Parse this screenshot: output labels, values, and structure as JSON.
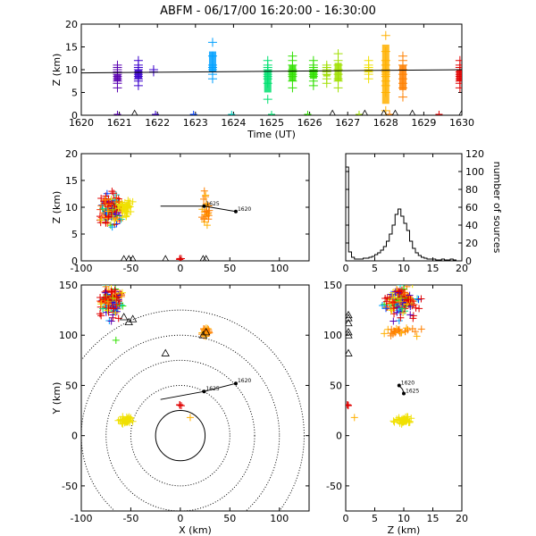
{
  "title": "ABFM - 06/17/00 16:20:00 - 16:30:00",
  "palette": [
    "#5a00b0",
    "#3a00cc",
    "#0040ff",
    "#00a0ff",
    "#00d0c0",
    "#00e070",
    "#30e000",
    "#a0e000",
    "#f0e000",
    "#ffb000",
    "#ff8000",
    "#ff3000",
    "#e00000"
  ],
  "chart_data": [
    {
      "id": "time_height",
      "type": "scatter",
      "xlabel": "Time (UT)",
      "ylabel": "Z (km)",
      "xlim": [
        1620,
        1630
      ],
      "ylim": [
        0,
        20
      ],
      "xticks": [
        1620,
        1621,
        1622,
        1623,
        1624,
        1625,
        1626,
        1627,
        1628,
        1629,
        1630
      ],
      "yticks": [
        0,
        5,
        10,
        15,
        20
      ],
      "reference_line": {
        "x": [
          1620,
          1630
        ],
        "y": [
          9.3,
          10.0
        ]
      },
      "clusters": [
        {
          "x": 1620.95,
          "y": [
            6.0,
            7.0,
            7.5,
            8.0,
            8.5,
            9.0,
            9.5,
            10.0,
            10.5,
            11.0
          ],
          "color": "#5a00b0"
        },
        {
          "x": 1621.5,
          "y": [
            6.5,
            7.5,
            8.0,
            8.5,
            9.0,
            9.5,
            10.0,
            10.5,
            11.0,
            12.0
          ],
          "color": "#3a00cc"
        },
        {
          "x": 1621.9,
          "y": [
            9.5,
            10.0
          ],
          "color": "#3a00cc"
        },
        {
          "x": 1623.45,
          "y": [
            8.0,
            9.0,
            9.5,
            10.0,
            10.5,
            11.0,
            13.0,
            16.0
          ],
          "color": "#00a0ff"
        },
        {
          "x": 1624.9,
          "y": [
            3.5,
            7.0,
            8.0,
            8.5,
            9.0,
            9.5,
            10.0,
            10.5,
            11.0,
            12.0
          ],
          "color": "#00e070"
        },
        {
          "x": 1625.55,
          "y": [
            6.0,
            7.5,
            8.5,
            9.0,
            9.5,
            10.0,
            11.0,
            12.0,
            13.0
          ],
          "color": "#30e000"
        },
        {
          "x": 1626.1,
          "y": [
            6.5,
            7.5,
            8.5,
            9.0,
            9.5,
            10.0,
            10.5,
            11.0,
            12.0
          ],
          "color": "#30e000"
        },
        {
          "x": 1626.45,
          "y": [
            7.0,
            8.0,
            9.0,
            9.5,
            10.0,
            10.5,
            11.0
          ],
          "color": "#a0e000"
        },
        {
          "x": 1626.75,
          "y": [
            6.0,
            7.5,
            8.0,
            9.0,
            10.0,
            11.0,
            12.0,
            13.5
          ],
          "color": "#a0e000"
        },
        {
          "x": 1627.55,
          "y": [
            8.0,
            9.0,
            9.5,
            10.0,
            10.5,
            11.0,
            12.0
          ],
          "color": "#f0e000"
        },
        {
          "x": 1628.0,
          "y": [
            1.0,
            5.0,
            6.5,
            7.5,
            8.5,
            9.0,
            9.5,
            10.0,
            11.0,
            12.0,
            14.0,
            17.5
          ],
          "color": "#ffb000"
        },
        {
          "x": 1628.45,
          "y": [
            4.0,
            6.0,
            7.0,
            8.0,
            9.0,
            10.0,
            11.0,
            12.0,
            13.0
          ],
          "color": "#ff8000"
        },
        {
          "x": 1629.95,
          "y": [
            6.0,
            7.0,
            7.5,
            8.0,
            8.5,
            9.0,
            9.5,
            10.0,
            10.5,
            11.0,
            12.0
          ],
          "color": "#e00000"
        }
      ],
      "ground_points": [
        {
          "x": 1620.95,
          "color": "#5a00b0"
        },
        {
          "x": 1621.95,
          "color": "#3a00cc"
        },
        {
          "x": 1622.95,
          "color": "#0040ff"
        },
        {
          "x": 1623.95,
          "color": "#00d0c0"
        },
        {
          "x": 1625.0,
          "color": "#00e070"
        },
        {
          "x": 1625.95,
          "color": "#30e000"
        },
        {
          "x": 1627.3,
          "color": "#a0e000"
        },
        {
          "x": 1628.1,
          "color": "#ff8000"
        },
        {
          "x": 1629.4,
          "color": "#e00000"
        }
      ],
      "triangles": [
        1621.4,
        1626.6,
        1627.45,
        1627.95,
        1628.25,
        1628.7,
        1630.0
      ]
    },
    {
      "id": "xz_view",
      "type": "scatter",
      "xlabel": "",
      "ylabel": "Z (km)",
      "xlim": [
        -100,
        130
      ],
      "ylim": [
        0,
        20
      ],
      "xticks": [
        -100,
        -50,
        0,
        50,
        100
      ],
      "yticks": [
        0,
        5,
        10,
        15,
        20
      ],
      "track": {
        "x": [
          -20,
          24,
          56
        ],
        "y": [
          10.2,
          10.2,
          9.2
        ],
        "labels": [
          {
            "x": 24,
            "y": 10.2,
            "text": "1625"
          },
          {
            "x": 56,
            "y": 9.2,
            "text": "1620"
          }
        ]
      },
      "triangles": [
        -57,
        -52,
        -48,
        -15,
        23,
        26
      ]
    },
    {
      "id": "histogram",
      "type": "area",
      "xlabel": "",
      "ylabel": "number of sources",
      "xlim": [
        0,
        20
      ],
      "ylim": [
        0,
        120
      ],
      "xticks": [
        0,
        5,
        10,
        15,
        20
      ],
      "yticks": [
        0,
        20,
        40,
        60,
        80,
        100,
        120
      ],
      "x": [
        0,
        0.5,
        1,
        1.5,
        2,
        2.5,
        3,
        3.5,
        4,
        4.5,
        5,
        5.5,
        6,
        6.5,
        7,
        7.5,
        8,
        8.5,
        9,
        9.5,
        10,
        10.5,
        11,
        11.5,
        12,
        12.5,
        13,
        13.5,
        14,
        14.5,
        15,
        15.5,
        16,
        16.5,
        17,
        17.5,
        18,
        18.5,
        19,
        19.5
      ],
      "values": [
        105,
        10,
        4,
        2,
        2,
        2,
        3,
        3,
        4,
        5,
        7,
        9,
        12,
        16,
        22,
        30,
        40,
        52,
        58,
        50,
        42,
        34,
        22,
        14,
        9,
        6,
        4,
        3,
        2,
        2,
        2,
        1,
        1,
        2,
        1,
        1,
        2,
        1,
        0,
        0
      ]
    },
    {
      "id": "plan_view",
      "type": "scatter",
      "xlabel": "X (km)",
      "ylabel": "Y (km)",
      "xlim": [
        -100,
        130
      ],
      "ylim": [
        -75,
        150
      ],
      "xticks": [
        -100,
        -50,
        0,
        50,
        100
      ],
      "yticks": [
        -50,
        0,
        50,
        100,
        150
      ],
      "range_rings": [
        25,
        50,
        75,
        100,
        125
      ],
      "ring_center": [
        0,
        0
      ],
      "track": {
        "x": [
          -20,
          24,
          56
        ],
        "y": [
          36,
          44,
          52
        ],
        "labels": [
          {
            "x": 24,
            "y": 44,
            "text": "1625"
          },
          {
            "x": 56,
            "y": 52,
            "text": "1620"
          }
        ]
      },
      "triangles": [
        [
          -57,
          118
        ],
        [
          -52,
          113
        ],
        [
          -48,
          116
        ],
        [
          -15,
          82
        ],
        [
          23,
          100
        ],
        [
          26,
          103
        ]
      ]
    },
    {
      "id": "yz_view",
      "type": "scatter",
      "xlabel": "Z (km)",
      "ylabel": "",
      "xlim": [
        0,
        20
      ],
      "ylim": [
        -75,
        150
      ],
      "xticks": [
        0,
        5,
        10,
        15,
        20
      ],
      "yticks": [
        -50,
        0,
        50,
        100,
        150
      ],
      "track": {
        "x": [
          9.2,
          9.8,
          10.0
        ],
        "y": [
          50,
          46,
          42
        ],
        "labels": [
          {
            "x": 9.2,
            "y": 50,
            "text": "1620"
          },
          {
            "x": 10.0,
            "y": 42,
            "text": "1625"
          }
        ]
      },
      "triangles": [
        [
          0,
          120
        ],
        [
          0,
          117
        ],
        [
          0,
          112
        ],
        [
          0,
          103
        ],
        [
          0,
          100
        ],
        [
          0,
          82
        ]
      ]
    }
  ],
  "storm_clusters": [
    {
      "cx": -70,
      "cy": 133,
      "sx": 7,
      "sy": 9,
      "cz": 9.5,
      "sz": 2,
      "n": 140,
      "colors": [
        0,
        1,
        2,
        3,
        4,
        5,
        6,
        7,
        8,
        9,
        10,
        11,
        12,
        12,
        12,
        12,
        12
      ]
    },
    {
      "cx": 26,
      "cy": 104,
      "sx": 2.5,
      "sy": 3,
      "cz": 9,
      "sz": 2.5,
      "n": 25,
      "colors": [
        9,
        10,
        10
      ]
    },
    {
      "cx": -55,
      "cy": 15,
      "sx": 5,
      "sy": 2.5,
      "cz": 10,
      "sz": 1,
      "n": 35,
      "colors": [
        8
      ]
    },
    {
      "cx": 0,
      "cy": 30,
      "sx": 1,
      "sy": 1,
      "cz": 0.3,
      "sz": 0.2,
      "n": 4,
      "colors": [
        12
      ]
    }
  ]
}
